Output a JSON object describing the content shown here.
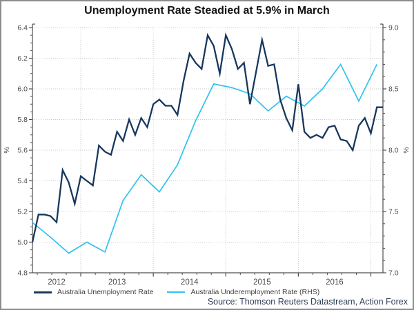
{
  "title": "Unemployment Rate Steadied at 5.9% in March",
  "source": "Source: Thomson Reuters Datastream, Action Forex",
  "colors": {
    "navy": "#17375d",
    "cyan": "#2fc2f0",
    "grid": "#c9c9c9",
    "axis": "#4d4d4d",
    "tick_text": "#4a4a4a"
  },
  "legend": {
    "items": [
      {
        "label": "Australia Unemployment Rate",
        "color": "#17375d"
      },
      {
        "label": "Australia Underemployment Rate (RHS)",
        "color": "#2fc2f0"
      }
    ]
  },
  "chart_data": {
    "type": "line",
    "title": "Unemployment Rate Steadied at 5.9% in March",
    "x_unit": "month",
    "x_start": "2012-05",
    "x_end": "2017-03",
    "x_tick_labels": [
      "2012",
      "2013",
      "2014",
      "2015",
      "2016"
    ],
    "year_boundary_month_indices": [
      8,
      20,
      32,
      44,
      56
    ],
    "left_axis": {
      "label": "%",
      "min": 4.8,
      "max": 6.4,
      "tick_step": 0.2,
      "minor_step": 0.05,
      "tick_labels": [
        "4.8",
        "5.0",
        "5.2",
        "5.4",
        "5.6",
        "5.8",
        "6.0",
        "6.2",
        "6.4"
      ]
    },
    "right_axis": {
      "label": "%",
      "min": 7.0,
      "max": 9.0,
      "tick_step": 0.5,
      "minor_step": 0.1,
      "tick_labels": [
        "7.0",
        "7.5",
        "8.0",
        "8.5",
        "9.0"
      ]
    },
    "grid": true,
    "legend_position": "bottom-left",
    "series": [
      {
        "name": "Australia Unemployment Rate",
        "axis": "left",
        "color": "#17375d",
        "width": 2.3,
        "frequency": "monthly",
        "month_step": 1,
        "values": [
          5.0,
          5.18,
          5.18,
          5.17,
          5.13,
          5.47,
          5.39,
          5.25,
          5.43,
          5.4,
          5.37,
          5.63,
          5.59,
          5.57,
          5.72,
          5.66,
          5.8,
          5.7,
          5.81,
          5.75,
          5.9,
          5.93,
          5.89,
          5.89,
          5.83,
          6.05,
          6.23,
          6.17,
          6.13,
          6.35,
          6.28,
          6.1,
          6.35,
          6.26,
          6.13,
          6.17,
          5.9,
          6.11,
          6.32,
          6.15,
          6.16,
          5.93,
          5.81,
          5.73,
          6.03,
          5.72,
          5.68,
          5.7,
          5.68,
          5.75,
          5.76,
          5.67,
          5.66,
          5.6,
          5.76,
          5.81,
          5.71,
          5.88,
          5.88
        ]
      },
      {
        "name": "Australia Underemployment Rate (RHS)",
        "axis": "right",
        "color": "#2fc2f0",
        "width": 1.7,
        "frequency": "quarterly",
        "month_step": 3,
        "values": [
          7.41,
          7.29,
          7.16,
          7.25,
          7.17,
          7.59,
          7.8,
          7.66,
          7.88,
          8.24,
          8.54,
          8.51,
          8.46,
          8.32,
          8.44,
          8.36,
          8.5,
          8.7,
          8.4,
          8.7
        ]
      }
    ]
  }
}
